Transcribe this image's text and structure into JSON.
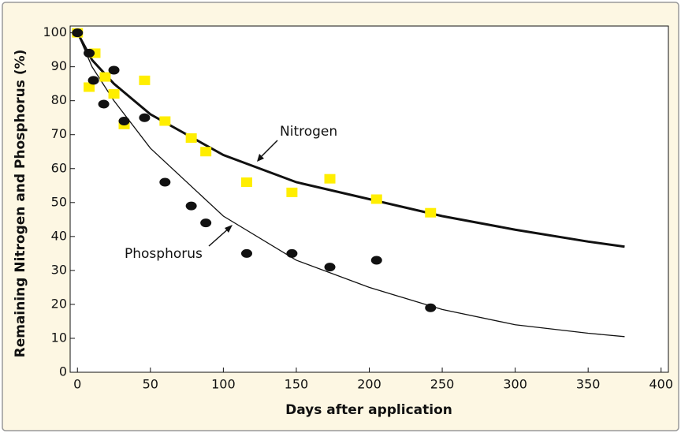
{
  "chart_data": {
    "type": "scatter",
    "xlabel": "Days after application",
    "ylabel": "Remaining Nitrogen and Phosphorus (%)",
    "xlim": [
      -5,
      405
    ],
    "ylim": [
      0,
      102
    ],
    "xticks": [
      0,
      50,
      100,
      150,
      200,
      250,
      300,
      350,
      400
    ],
    "yticks": [
      0,
      10,
      20,
      30,
      40,
      50,
      60,
      70,
      80,
      90,
      100
    ],
    "series": [
      {
        "name": "Nitrogen",
        "color": "#ffee00",
        "marker": "square",
        "x": [
          0,
          8,
          12,
          19,
          25,
          32,
          46,
          60,
          78,
          88,
          116,
          147,
          173,
          205,
          242
        ],
        "values": [
          100,
          84,
          94,
          87,
          82,
          73,
          86,
          74,
          69,
          65,
          56,
          53,
          57,
          51,
          47
        ],
        "fit": {
          "color": "#111111",
          "width": 3,
          "x": [
            0,
            10,
            25,
            50,
            100,
            150,
            200,
            250,
            300,
            350,
            375
          ],
          "values": [
            100,
            92,
            85,
            76,
            64,
            56,
            51,
            46,
            42,
            38.5,
            37
          ]
        }
      },
      {
        "name": "Phosphorus",
        "color": "#111111",
        "marker": "circle",
        "x": [
          0,
          8,
          11,
          18,
          25,
          32,
          46,
          60,
          78,
          88,
          116,
          147,
          173,
          205,
          242
        ],
        "values": [
          100,
          94,
          86,
          79,
          89,
          74,
          75,
          56,
          49,
          44,
          35,
          35,
          31,
          33,
          19
        ],
        "fit": {
          "color": "#111111",
          "width": 1.3,
          "x": [
            0,
            10,
            25,
            50,
            100,
            150,
            200,
            250,
            300,
            350,
            375
          ],
          "values": [
            100,
            90,
            80,
            66,
            46,
            33,
            25,
            18.5,
            14,
            11.5,
            10.5
          ]
        }
      }
    ]
  }
}
